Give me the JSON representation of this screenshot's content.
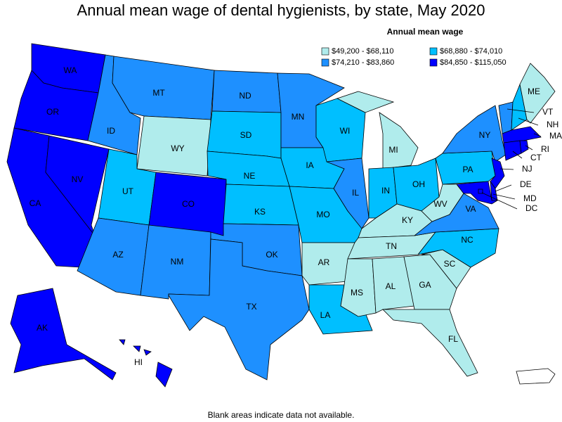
{
  "title": "Annual mean wage of dental hygienists, by state, May 2020",
  "legend": {
    "title": "Annual mean wage",
    "items": [
      {
        "label": "$49,200 - $68,110",
        "color": "#b0ecec"
      },
      {
        "label": "$68,880 - $74,010",
        "color": "#00bfff"
      },
      {
        "label": "$74,210 - $83,860",
        "color": "#1e90ff"
      },
      {
        "label": "$84,850 - $115,050",
        "color": "#0000ff"
      }
    ]
  },
  "states": [
    {
      "label": "WA",
      "color": "#0000ff"
    },
    {
      "label": "OR",
      "color": "#0000ff"
    },
    {
      "label": "CA",
      "color": "#0000ff"
    },
    {
      "label": "NV",
      "color": "#0000ff"
    },
    {
      "label": "ID",
      "color": "#1e90ff"
    },
    {
      "label": "MT",
      "color": "#1e90ff"
    },
    {
      "label": "WY",
      "color": "#b0ecec"
    },
    {
      "label": "UT",
      "color": "#00bfff"
    },
    {
      "label": "CO",
      "color": "#0000ff"
    },
    {
      "label": "AZ",
      "color": "#1e90ff"
    },
    {
      "label": "NM",
      "color": "#1e90ff"
    },
    {
      "label": "ND",
      "color": "#1e90ff"
    },
    {
      "label": "SD",
      "color": "#00bfff"
    },
    {
      "label": "NE",
      "color": "#00bfff"
    },
    {
      "label": "KS",
      "color": "#00bfff"
    },
    {
      "label": "OK",
      "color": "#1e90ff"
    },
    {
      "label": "TX",
      "color": "#1e90ff"
    },
    {
      "label": "MN",
      "color": "#1e90ff"
    },
    {
      "label": "IA",
      "color": "#00bfff"
    },
    {
      "label": "MO",
      "color": "#00bfff"
    },
    {
      "label": "AR",
      "color": "#b0ecec"
    },
    {
      "label": "LA",
      "color": "#00bfff"
    },
    {
      "label": "WI",
      "color": "#00bfff"
    },
    {
      "label": "IL",
      "color": "#1e90ff"
    },
    {
      "label": "MI",
      "color": "#b0ecec"
    },
    {
      "label": "IN",
      "color": "#00bfff"
    },
    {
      "label": "OH",
      "color": "#00bfff"
    },
    {
      "label": "KY",
      "color": "#b0ecec"
    },
    {
      "label": "TN",
      "color": "#b0ecec"
    },
    {
      "label": "MS",
      "color": "#b0ecec"
    },
    {
      "label": "AL",
      "color": "#b0ecec"
    },
    {
      "label": "GA",
      "color": "#b0ecec"
    },
    {
      "label": "FL",
      "color": "#b0ecec"
    },
    {
      "label": "SC",
      "color": "#b0ecec"
    },
    {
      "label": "NC",
      "color": "#00bfff"
    },
    {
      "label": "VA",
      "color": "#1e90ff"
    },
    {
      "label": "WV",
      "color": "#b0ecec"
    },
    {
      "label": "PA",
      "color": "#00bfff"
    },
    {
      "label": "NY",
      "color": "#1e90ff"
    },
    {
      "label": "NJ",
      "color": "#0000ff"
    },
    {
      "label": "DE",
      "color": "#0000ff"
    },
    {
      "label": "MD",
      "color": "#0000ff"
    },
    {
      "label": "VT",
      "color": "#1e90ff"
    },
    {
      "label": "NH",
      "color": "#00bfff"
    },
    {
      "label": "ME",
      "color": "#b0ecec"
    },
    {
      "label": "MA",
      "color": "#0000ff"
    },
    {
      "label": "CT",
      "color": "#0000ff"
    },
    {
      "label": "RI",
      "color": "#0000ff"
    },
    {
      "label": "DC",
      "color": "#0000ff"
    },
    {
      "label": "AK",
      "color": "#0000ff"
    },
    {
      "label": "HI",
      "color": "#0000ff"
    }
  ],
  "footnote": "Blank areas indicate data not available."
}
